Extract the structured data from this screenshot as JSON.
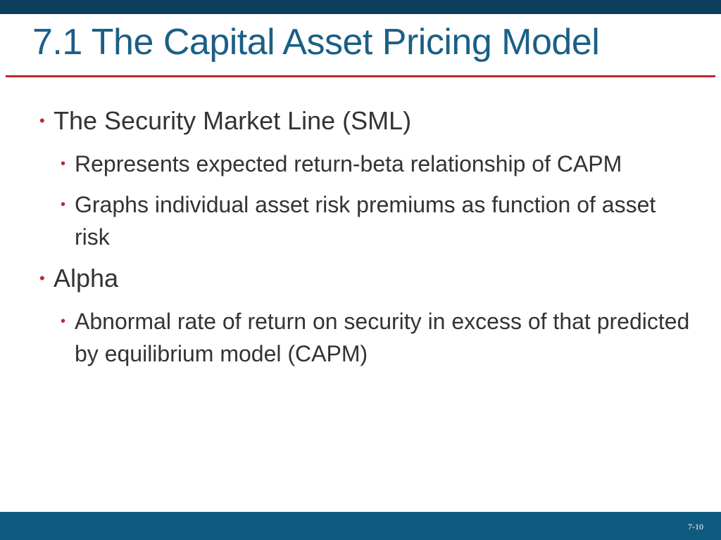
{
  "slide": {
    "title": "7.1 The Capital Asset Pricing Model",
    "page_number": "7-10",
    "colors": {
      "top_bar": "#0b3f5c",
      "bottom_bar": "#0f5a7f",
      "title": "#1b5f86",
      "accent_red": "#c0282d",
      "body_text": "#333333"
    }
  },
  "bullets": [
    {
      "marker": "•",
      "text": "The Security Market Line (SML)"
    },
    {
      "marker": "•",
      "text": "Represents expected return-beta relationship of CAPM"
    },
    {
      "marker": "•",
      "text": "Graphs individual asset risk premiums as function of asset risk"
    },
    {
      "marker": "•",
      "text": "Alpha"
    },
    {
      "marker": "•",
      "text": "Abnormal rate of return on security in excess of that predicted by equilibrium model (CAPM)"
    }
  ]
}
